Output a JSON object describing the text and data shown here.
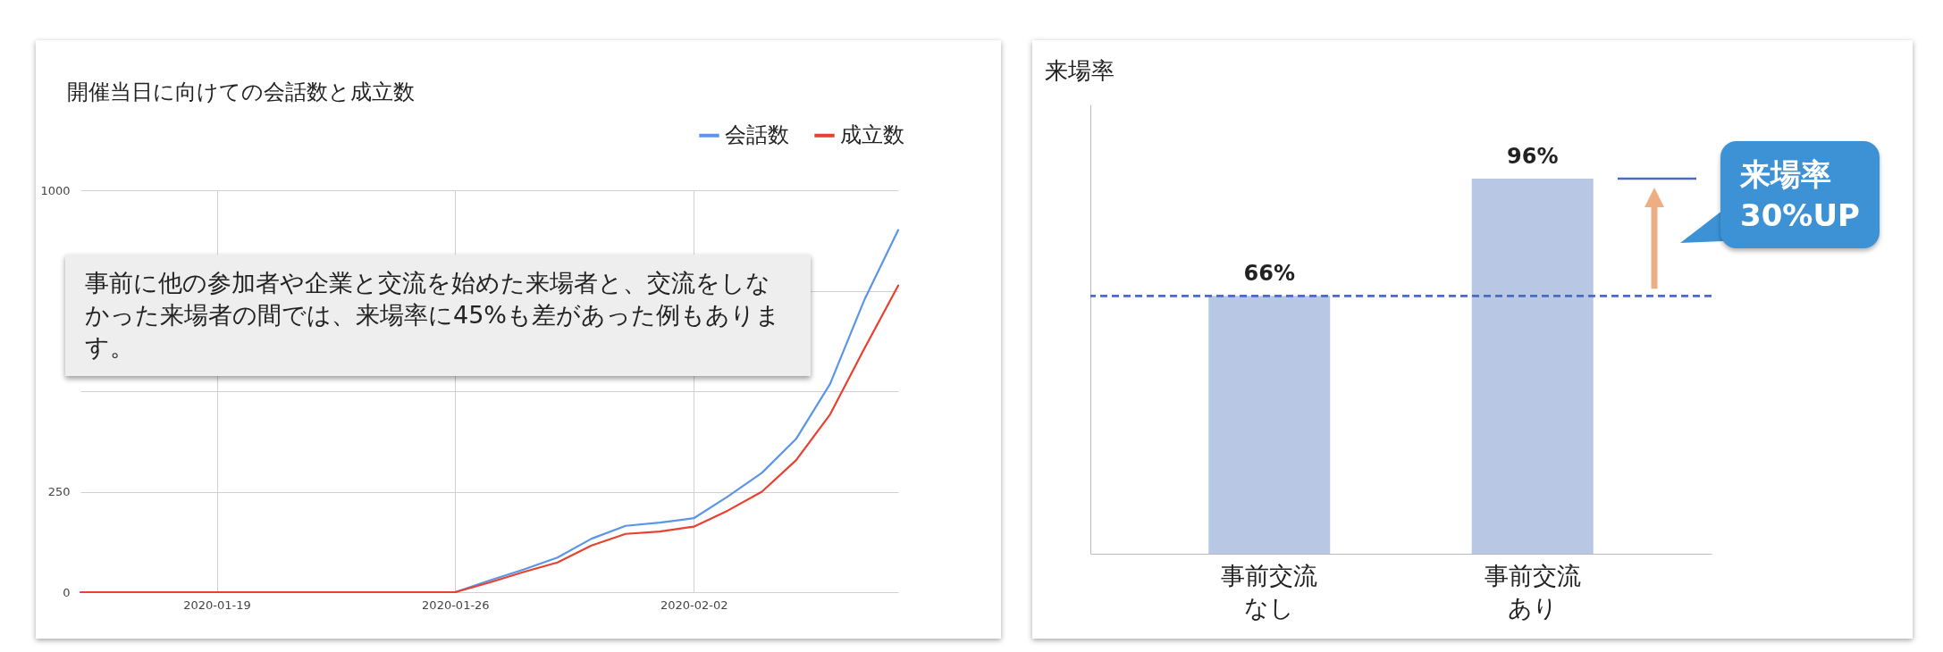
{
  "chart_data": [
    {
      "type": "line",
      "title": "開催当日に向けての会話数と成立数",
      "x": [
        "2020-01-15",
        "2020-01-16",
        "2020-01-17",
        "2020-01-18",
        "2020-01-19",
        "2020-01-20",
        "2020-01-21",
        "2020-01-22",
        "2020-01-23",
        "2020-01-24",
        "2020-01-25",
        "2020-01-26",
        "2020-01-27",
        "2020-01-28",
        "2020-01-29",
        "2020-01-30",
        "2020-01-31",
        "2020-02-01",
        "2020-02-02",
        "2020-02-03",
        "2020-02-04",
        "2020-02-05",
        "2020-02-06",
        "2020-02-07",
        "2020-02-08"
      ],
      "series": [
        {
          "name": "会話数",
          "color": "#5b95e8",
          "values": [
            null,
            null,
            null,
            null,
            null,
            null,
            null,
            null,
            null,
            null,
            0,
            0,
            29,
            56,
            86,
            133,
            165,
            173,
            184,
            238,
            297,
            381,
            518,
            726,
            901
          ]
        },
        {
          "name": "成立数",
          "color": "#e8412f",
          "values": [
            0,
            0,
            0,
            0,
            0,
            0,
            0,
            0,
            0,
            0,
            0,
            0,
            24,
            50,
            74,
            116,
            145,
            151,
            163,
            203,
            250,
            328,
            442,
            605,
            763
          ]
        }
      ],
      "xlim": [
        "2020-01-15",
        "2020-02-08"
      ],
      "xticks": [
        {
          "value": "2020-01-19",
          "label": "2020-01-19"
        },
        {
          "value": "2020-01-26",
          "label": "2020-01-26"
        },
        {
          "value": "2020-02-02",
          "label": "2020-02-02"
        }
      ],
      "ylim": [
        0,
        1000
      ],
      "yticks": [
        0,
        250,
        {
          "value": 500,
          "label": null
        },
        {
          "value": 750,
          "label": null
        },
        1000
      ],
      "grid": true,
      "legend": "top right",
      "annotations": [
        "事前に他の参加者や企業と交流を始めた来場者と、交流をしなかった来場者の間では、来場率に45%も差があった例もあります。"
      ]
    },
    {
      "type": "bar",
      "title": "来場率",
      "categories": [
        "事前交流なし",
        "事前交流あり"
      ],
      "values": [
        66,
        96
      ],
      "color": "#b7c7e4",
      "value_labels": [
        "66%",
        "96%"
      ],
      "ylim": [
        0,
        115
      ],
      "tick_labels": "x",
      "ref_lines": [
        {
          "axis": "y",
          "value": 66,
          "color": "#4a6bbf",
          "line_style": "dashed"
        }
      ],
      "annotations": [
        "来場率\n30%UP"
      ]
    }
  ]
}
